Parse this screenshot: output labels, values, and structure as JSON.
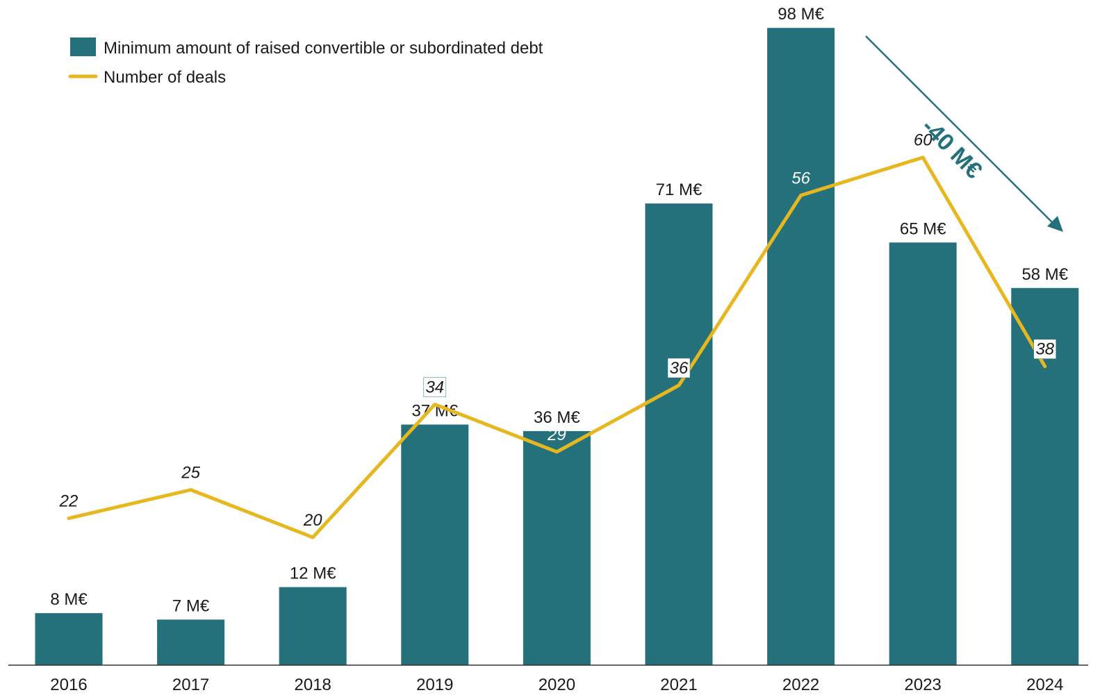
{
  "chart_data": {
    "type": "bar",
    "categories": [
      "2016",
      "2017",
      "2018",
      "2019",
      "2020",
      "2021",
      "2022",
      "2023",
      "2024"
    ],
    "series": [
      {
        "name": "Minimum amount of raised convertible or subordinated debt",
        "type": "bar",
        "values": [
          8,
          7,
          12,
          37,
          36,
          71,
          98,
          65,
          58
        ],
        "labels": [
          "8 M€",
          "7 M€",
          "12 M€",
          "37 M€",
          "36 M€",
          "71 M€",
          "98 M€",
          "65 M€",
          "58 M€"
        ],
        "color": "#24717c"
      },
      {
        "name": "Number of deals",
        "type": "line",
        "values": [
          22,
          25,
          20,
          34,
          29,
          36,
          56,
          60,
          38
        ],
        "labels": [
          "22",
          "25",
          "20",
          "34",
          "29",
          "36",
          "56",
          "60",
          "38"
        ],
        "color": "#e6b71e"
      }
    ],
    "annotation": {
      "text": "-40 M€",
      "from_category": "2022",
      "to_category": "2024",
      "color": "#24717c"
    },
    "legend_position": "top-left",
    "grid": false
  }
}
